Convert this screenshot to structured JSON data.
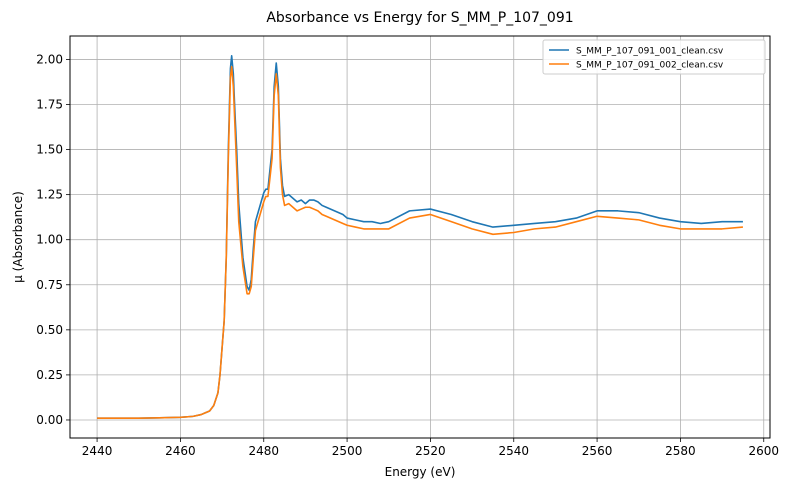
{
  "chart_data": {
    "type": "line",
    "title": "Absorbance vs Energy for S_MM_P_107_091",
    "xlabel": "Energy (eV)",
    "ylabel": "μ (Absorbance)",
    "xlim": [
      2433.5,
      2601.5
    ],
    "ylim": [
      -0.1,
      2.13
    ],
    "xticks": [
      2440,
      2460,
      2480,
      2500,
      2520,
      2540,
      2560,
      2580,
      2600
    ],
    "yticks": [
      0.0,
      0.25,
      0.5,
      0.75,
      1.0,
      1.25,
      1.5,
      1.75,
      2.0
    ],
    "xtick_labels": [
      "2440",
      "2460",
      "2480",
      "2500",
      "2520",
      "2540",
      "2560",
      "2580",
      "2600"
    ],
    "ytick_labels": [
      "0.00",
      "0.25",
      "0.50",
      "0.75",
      "1.00",
      "1.25",
      "1.50",
      "1.75",
      "2.00"
    ],
    "grid": true,
    "legend_position": "top-right",
    "series": [
      {
        "name": "S_MM_P_107_091_001_clean.csv",
        "color": "#1f77b4",
        "x": [
          2440,
          2450,
          2455,
          2460,
          2463,
          2465,
          2466,
          2467,
          2468,
          2469,
          2469.5,
          2470,
          2470.5,
          2471,
          2471.5,
          2472,
          2472.3,
          2472.7,
          2473,
          2473.5,
          2474,
          2475,
          2476,
          2476.5,
          2477,
          2477.5,
          2478,
          2479,
          2480,
          2480.5,
          2481,
          2482,
          2482.5,
          2483,
          2483.5,
          2484,
          2484.5,
          2485,
          2486,
          2487,
          2488,
          2489,
          2490,
          2491,
          2492,
          2493,
          2494,
          2495,
          2497,
          2499,
          2500,
          2502,
          2504,
          2506,
          2508,
          2510,
          2515,
          2520,
          2525,
          2530,
          2535,
          2540,
          2545,
          2550,
          2555,
          2560,
          2565,
          2570,
          2575,
          2580,
          2585,
          2590,
          2595
        ],
        "y": [
          0.01,
          0.01,
          0.012,
          0.015,
          0.02,
          0.03,
          0.04,
          0.05,
          0.08,
          0.15,
          0.25,
          0.4,
          0.55,
          0.9,
          1.5,
          1.95,
          2.02,
          1.92,
          1.75,
          1.5,
          1.2,
          0.9,
          0.74,
          0.72,
          0.78,
          0.95,
          1.1,
          1.18,
          1.26,
          1.28,
          1.28,
          1.5,
          1.85,
          1.98,
          1.85,
          1.45,
          1.3,
          1.24,
          1.25,
          1.23,
          1.21,
          1.22,
          1.2,
          1.22,
          1.22,
          1.21,
          1.19,
          1.18,
          1.16,
          1.14,
          1.12,
          1.11,
          1.1,
          1.1,
          1.09,
          1.1,
          1.16,
          1.17,
          1.14,
          1.1,
          1.07,
          1.08,
          1.09,
          1.1,
          1.12,
          1.16,
          1.16,
          1.15,
          1.12,
          1.1,
          1.09,
          1.1,
          1.1
        ]
      },
      {
        "name": "S_MM_P_107_091_002_clean.csv",
        "color": "#ff7f0e",
        "x": [
          2440,
          2450,
          2455,
          2460,
          2463,
          2465,
          2466,
          2467,
          2468,
          2469,
          2469.5,
          2470,
          2470.5,
          2471,
          2471.5,
          2472,
          2472.3,
          2472.7,
          2473,
          2473.5,
          2474,
          2475,
          2476,
          2476.5,
          2477,
          2477.5,
          2478,
          2479,
          2480,
          2480.5,
          2481,
          2482,
          2482.5,
          2483,
          2483.5,
          2484,
          2484.5,
          2485,
          2486,
          2487,
          2488,
          2489,
          2490,
          2491,
          2492,
          2493,
          2494,
          2495,
          2497,
          2499,
          2500,
          2502,
          2504,
          2506,
          2508,
          2510,
          2515,
          2520,
          2525,
          2530,
          2535,
          2540,
          2545,
          2550,
          2555,
          2560,
          2565,
          2570,
          2575,
          2580,
          2585,
          2590,
          2595
        ],
        "y": [
          0.01,
          0.01,
          0.012,
          0.015,
          0.02,
          0.03,
          0.04,
          0.05,
          0.08,
          0.15,
          0.25,
          0.4,
          0.55,
          0.9,
          1.45,
          1.9,
          1.96,
          1.85,
          1.68,
          1.4,
          1.1,
          0.85,
          0.7,
          0.7,
          0.74,
          0.9,
          1.05,
          1.13,
          1.21,
          1.24,
          1.24,
          1.45,
          1.8,
          1.92,
          1.8,
          1.4,
          1.25,
          1.19,
          1.2,
          1.18,
          1.16,
          1.17,
          1.18,
          1.18,
          1.17,
          1.16,
          1.14,
          1.13,
          1.11,
          1.09,
          1.08,
          1.07,
          1.06,
          1.06,
          1.06,
          1.06,
          1.12,
          1.14,
          1.1,
          1.06,
          1.03,
          1.04,
          1.06,
          1.07,
          1.1,
          1.13,
          1.12,
          1.11,
          1.08,
          1.06,
          1.06,
          1.06,
          1.07
        ]
      }
    ]
  }
}
